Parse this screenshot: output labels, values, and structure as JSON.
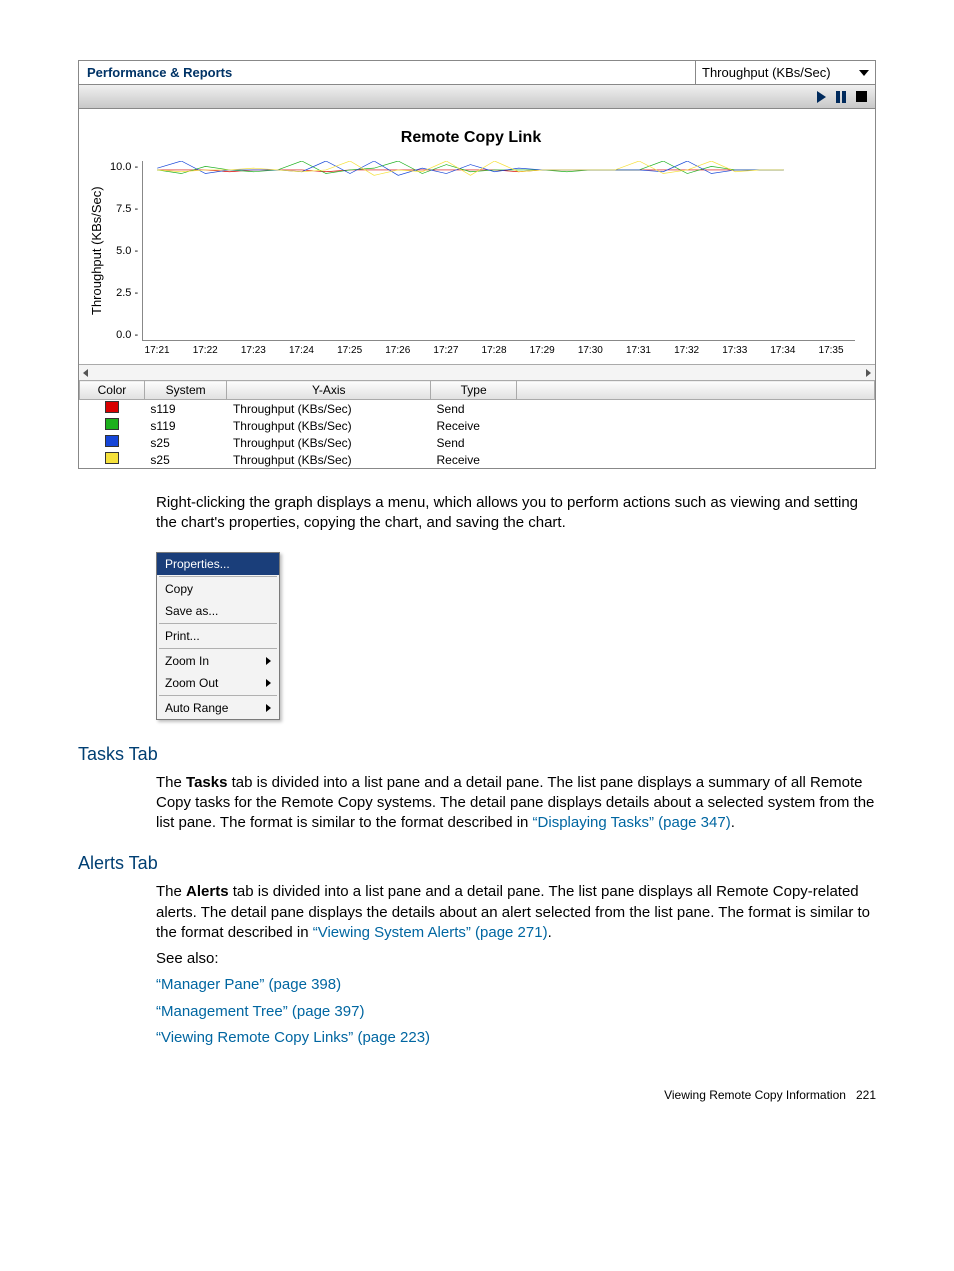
{
  "perf_panel": {
    "title": "Performance & Reports",
    "dropdown": "Throughput (KBs/Sec)"
  },
  "chart": {
    "type": "line",
    "title": "Remote Copy Link",
    "ylabel": "Throughput (KBs/Sec)",
    "ylim": [
      0.0,
      10.0
    ],
    "yticks": [
      "10.0",
      "7.5",
      "5.0",
      "2.5",
      "0.0"
    ],
    "xticks": [
      "17:21",
      "17:22",
      "17:23",
      "17:24",
      "17:25",
      "17:26",
      "17:27",
      "17:28",
      "17:29",
      "17:30",
      "17:31",
      "17:32",
      "17:33",
      "17:34",
      "17:35"
    ],
    "background_color": "#ffffff",
    "axis_color": "#888888",
    "series": [
      {
        "color": "#d80000",
        "system": "s119",
        "yaxis": "Throughput (KBs/Sec)",
        "type_": "Send",
        "values": [
          9.5,
          9.5,
          9.5,
          9.4,
          9.5,
          9.5,
          9.5,
          9.4,
          9.5,
          9.5,
          9.5,
          9.5,
          9.5,
          9.5,
          9.5,
          9.4,
          9.5,
          9.5,
          9.5,
          9.5,
          9.5,
          9.5,
          9.5,
          9.5,
          9.5,
          9.5,
          9.5
        ]
      },
      {
        "color": "#1db01d",
        "system": "s119",
        "yaxis": "Throughput (KBs/Sec)",
        "type_": "Receive",
        "values": [
          9.5,
          9.3,
          9.7,
          9.5,
          9.4,
          9.5,
          10.0,
          9.3,
          9.5,
          9.6,
          10.0,
          9.3,
          9.8,
          9.4,
          9.5,
          9.5,
          9.5,
          9.4,
          9.5,
          9.5,
          9.5,
          10.0,
          9.3,
          9.7,
          9.5,
          9.5,
          9.5
        ]
      },
      {
        "color": "#1646d8",
        "system": "s25",
        "yaxis": "Throughput (KBs/Sec)",
        "type_": "Send",
        "values": [
          9.6,
          10.0,
          9.3,
          9.5,
          9.5,
          9.5,
          9.4,
          10.0,
          9.3,
          10.0,
          9.2,
          9.6,
          9.3,
          9.8,
          9.4,
          9.6,
          9.5,
          9.5,
          9.5,
          9.5,
          9.5,
          9.4,
          10.0,
          9.3,
          9.5,
          9.5,
          9.5
        ]
      },
      {
        "color": "#f5e13b",
        "system": "s25",
        "yaxis": "Throughput (KBs/Sec)",
        "type_": "Receive",
        "values": [
          9.5,
          9.4,
          9.5,
          9.5,
          9.6,
          9.5,
          9.4,
          9.5,
          10.0,
          9.2,
          9.5,
          9.4,
          10.0,
          9.2,
          10.0,
          9.4,
          9.5,
          9.5,
          9.5,
          9.5,
          10.0,
          9.3,
          9.5,
          10.0,
          9.4,
          9.5,
          9.5
        ]
      }
    ],
    "legend_columns": [
      "Color",
      "System",
      "Y-Axis",
      "Type"
    ]
  },
  "context_menu": {
    "items": [
      {
        "label": "Properties...",
        "selected": true,
        "submenu": false
      },
      {
        "sep": true
      },
      {
        "label": "Copy",
        "submenu": false
      },
      {
        "label": "Save as...",
        "submenu": false
      },
      {
        "sep": true
      },
      {
        "label": "Print...",
        "submenu": false
      },
      {
        "sep": true
      },
      {
        "label": "Zoom In",
        "submenu": true
      },
      {
        "label": "Zoom Out",
        "submenu": true
      },
      {
        "sep": true
      },
      {
        "label": "Auto Range",
        "submenu": true
      }
    ]
  },
  "paragraphs": {
    "after_chart": "Right-clicking the graph displays a menu, which allows you to perform actions such as viewing and setting the chart's properties, copying the chart, and saving the chart."
  },
  "sections": {
    "tasks": {
      "heading": "Tasks Tab",
      "text_prefix": "The ",
      "bold1": "Tasks",
      "text_mid": " tab is divided into a list pane and a detail pane. The list pane displays a summary of all Remote Copy tasks for the Remote Copy systems. The detail pane displays details about a selected system from the list pane. The format is similar to the format described in ",
      "link": "“Displaying Tasks” (page 347)",
      "text_end": "."
    },
    "alerts": {
      "heading": "Alerts Tab",
      "text_prefix": "The ",
      "bold1": "Alerts",
      "text_mid": " tab is divided into a list pane and a detail pane. The list pane displays all Remote Copy-related alerts. The detail pane displays the details about an alert selected from the list pane. The format is similar to the format described in ",
      "link": "“Viewing System Alerts” (page 271)",
      "text_end": ".",
      "see_also": "See also:",
      "links": [
        "“Manager Pane” (page 398)",
        "“Management Tree” (page 397)",
        "“Viewing Remote Copy Links” (page 223)"
      ]
    }
  },
  "footer": {
    "text": "Viewing Remote Copy Information",
    "page": "221"
  }
}
